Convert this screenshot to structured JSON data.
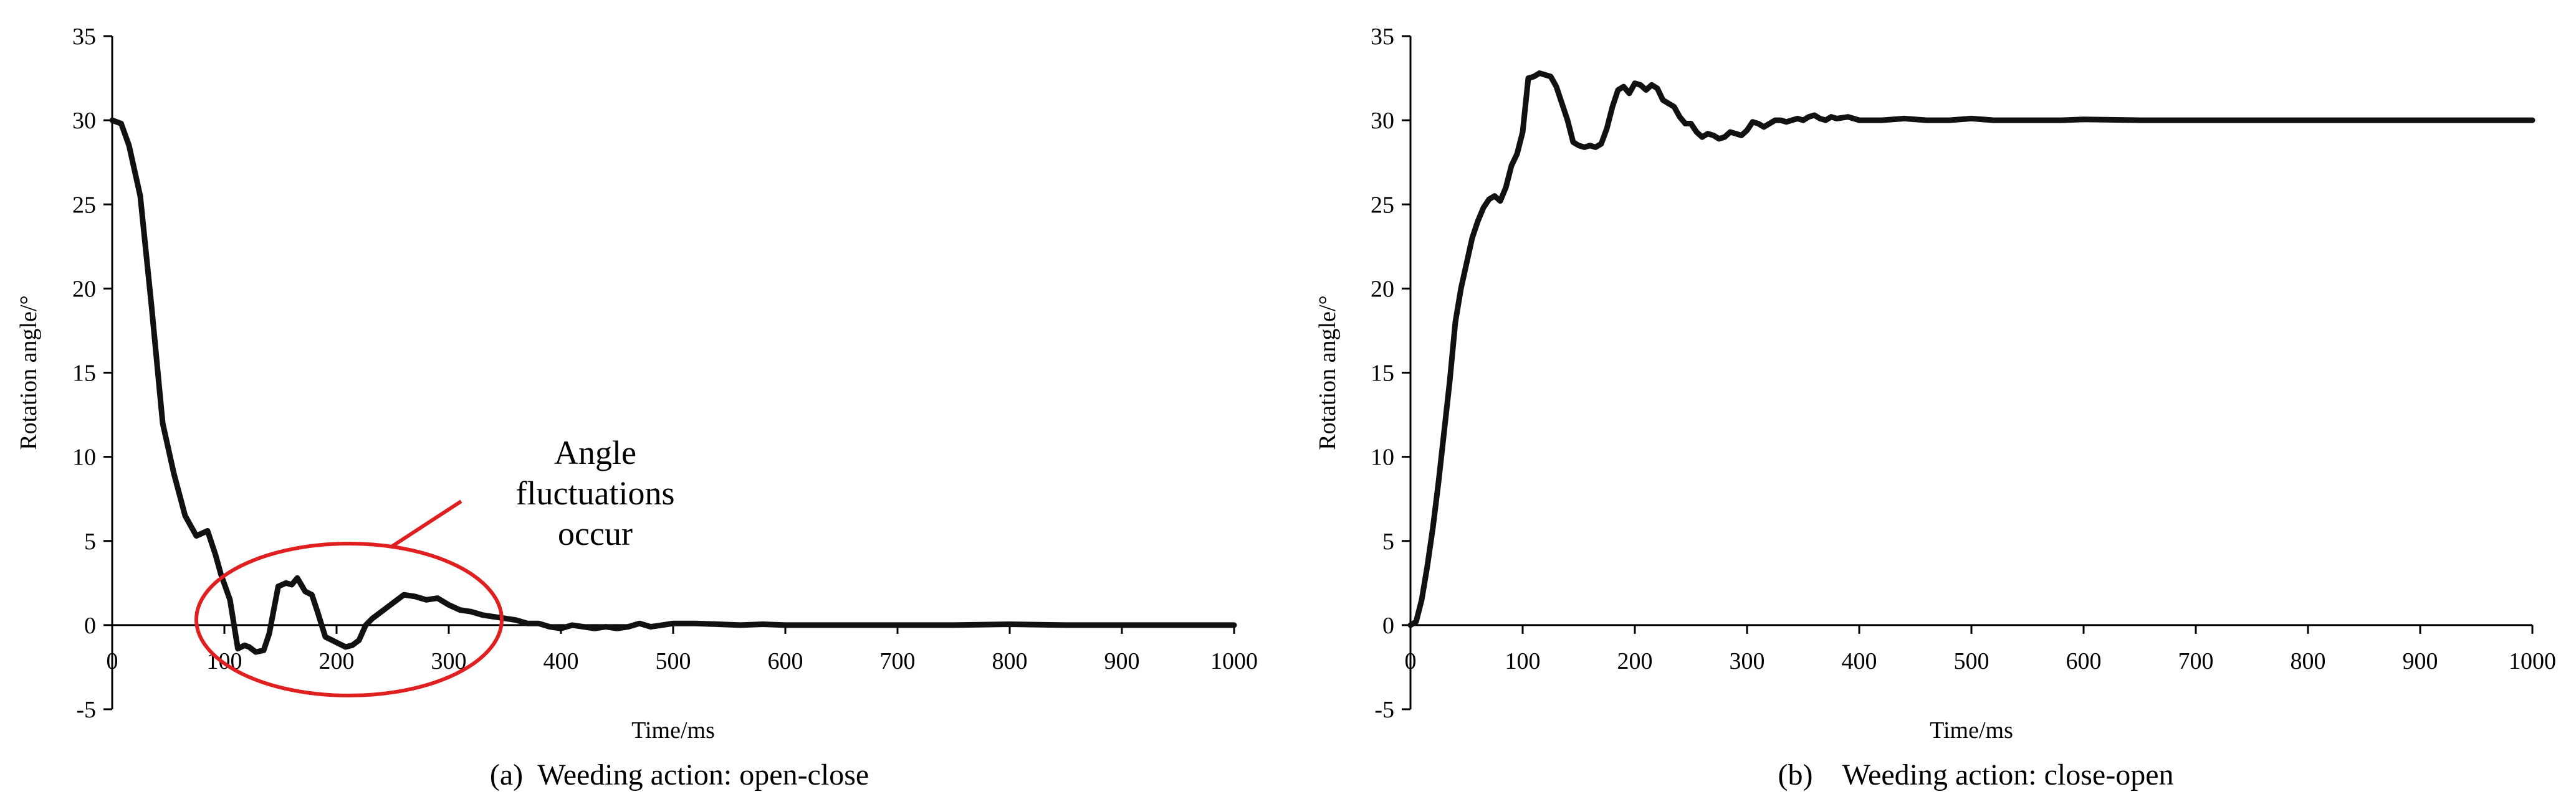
{
  "chart_data": [
    {
      "type": "line",
      "caption": "(a)  Weeding action: open-close",
      "xlabel": "Time/ms",
      "ylabel": "Rotation angle/°",
      "xlim": [
        0,
        1000
      ],
      "ylim": [
        -5,
        35
      ],
      "xticks": [
        0,
        100,
        200,
        300,
        400,
        500,
        600,
        700,
        800,
        900,
        1000
      ],
      "yticks": [
        -5,
        0,
        5,
        10,
        15,
        20,
        25,
        30,
        35
      ],
      "grid": false,
      "line_color": "#111111",
      "annotation": {
        "lines": [
          "Angle",
          "fluctuations",
          "occur"
        ],
        "color": "#e02020"
      },
      "series": [
        {
          "x": [
            0,
            8,
            15,
            25,
            35,
            45,
            55,
            65,
            75,
            85,
            92,
            97,
            105,
            112,
            118,
            122,
            128,
            135,
            140,
            148,
            155,
            160,
            165,
            172,
            178,
            183,
            190,
            196,
            202,
            208,
            214,
            220,
            226,
            232,
            240,
            250,
            260,
            270,
            280,
            290,
            300,
            310,
            320,
            330,
            340,
            350,
            360,
            370,
            380,
            390,
            400,
            410,
            420,
            430,
            440,
            450,
            460,
            470,
            480,
            490,
            500,
            520,
            540,
            560,
            580,
            600,
            650,
            700,
            750,
            800,
            850,
            900,
            950,
            1000
          ],
          "y": [
            30,
            29.8,
            28.5,
            25.5,
            19,
            12,
            9,
            6.5,
            5.3,
            5.6,
            4.2,
            3,
            1.5,
            -1.4,
            -1.2,
            -1.3,
            -1.6,
            -1.5,
            -0.5,
            2.3,
            2.5,
            2.4,
            2.8,
            2,
            1.8,
            0.8,
            -0.7,
            -0.9,
            -1.1,
            -1.3,
            -1.2,
            -0.9,
            0,
            0.4,
            0.8,
            1.3,
            1.8,
            1.7,
            1.5,
            1.6,
            1.2,
            0.9,
            0.8,
            0.6,
            0.5,
            0.4,
            0.3,
            0.1,
            0.1,
            -0.1,
            -0.2,
            0,
            -0.1,
            -0.2,
            -0.1,
            -0.2,
            -0.1,
            0.1,
            -0.1,
            0,
            0.1,
            0.1,
            0.05,
            0,
            0.05,
            0,
            0,
            0,
            0,
            0.05,
            0,
            0,
            0,
            0
          ]
        }
      ]
    },
    {
      "type": "line",
      "caption": "(b)    Weeding action: close-open",
      "xlabel": "Time/ms",
      "ylabel": "Rotation angle/°",
      "xlim": [
        0,
        1000
      ],
      "ylim": [
        -5,
        35
      ],
      "xticks": [
        0,
        100,
        200,
        300,
        400,
        500,
        600,
        700,
        800,
        900,
        1000
      ],
      "yticks": [
        -5,
        0,
        5,
        10,
        15,
        20,
        25,
        30,
        35
      ],
      "grid": false,
      "line_color": "#111111",
      "series": [
        {
          "x": [
            0,
            5,
            10,
            15,
            20,
            25,
            30,
            35,
            40,
            45,
            50,
            55,
            60,
            65,
            70,
            75,
            80,
            85,
            90,
            95,
            100,
            105,
            110,
            115,
            120,
            125,
            130,
            135,
            140,
            145,
            150,
            155,
            160,
            165,
            170,
            175,
            180,
            185,
            190,
            195,
            200,
            205,
            210,
            215,
            220,
            225,
            230,
            235,
            240,
            245,
            250,
            255,
            260,
            265,
            270,
            275,
            280,
            285,
            290,
            295,
            300,
            305,
            310,
            315,
            320,
            325,
            330,
            335,
            340,
            345,
            350,
            355,
            360,
            365,
            370,
            375,
            380,
            390,
            400,
            420,
            440,
            460,
            480,
            500,
            520,
            540,
            560,
            580,
            600,
            650,
            700,
            750,
            800,
            850,
            900,
            950,
            1000
          ],
          "y": [
            0,
            0.2,
            1.5,
            3.5,
            5.8,
            8.5,
            11.5,
            14.5,
            18,
            20,
            21.5,
            23,
            24,
            24.8,
            25.3,
            25.5,
            25.2,
            26,
            27.3,
            28,
            29.3,
            32.5,
            32.6,
            32.8,
            32.7,
            32.6,
            32,
            31,
            30,
            28.7,
            28.5,
            28.4,
            28.5,
            28.4,
            28.6,
            29.5,
            30.8,
            31.8,
            32,
            31.6,
            32.2,
            32.1,
            31.8,
            32.1,
            31.9,
            31.2,
            31,
            30.8,
            30.2,
            29.8,
            29.8,
            29.3,
            29,
            29.2,
            29.1,
            28.9,
            29,
            29.3,
            29.2,
            29.1,
            29.4,
            29.9,
            29.8,
            29.6,
            29.8,
            30,
            30,
            29.9,
            30,
            30.1,
            30,
            30.2,
            30.3,
            30.1,
            30,
            30.2,
            30.1,
            30.2,
            30,
            30,
            30.1,
            30,
            30,
            30.1,
            30,
            30,
            30,
            30,
            30.05,
            30,
            30,
            30,
            30,
            30,
            30,
            30,
            30
          ]
        }
      ]
    }
  ]
}
